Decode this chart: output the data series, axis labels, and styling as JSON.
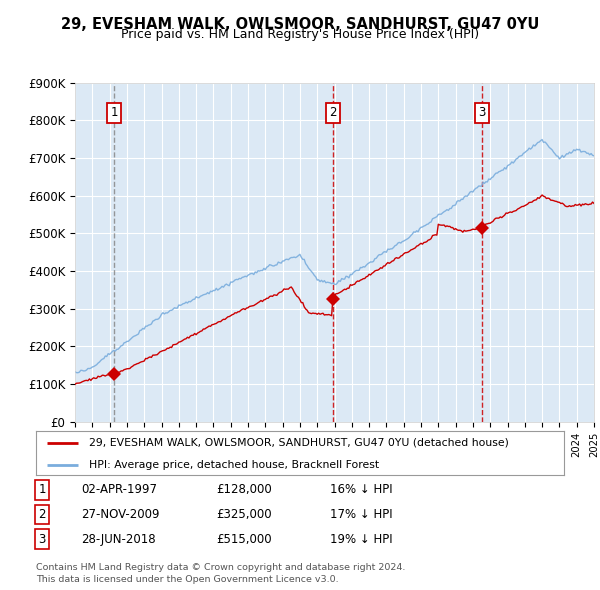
{
  "title": "29, EVESHAM WALK, OWLSMOOR, SANDHURST, GU47 0YU",
  "subtitle": "Price paid vs. HM Land Registry's House Price Index (HPI)",
  "sales": [
    {
      "num": 1,
      "date": "02-APR-1997",
      "price": 128000,
      "year": 1997.25,
      "hpi_note": "16% ↓ HPI"
    },
    {
      "num": 2,
      "date": "27-NOV-2009",
      "price": 325000,
      "year": 2009.9,
      "hpi_note": "17% ↓ HPI"
    },
    {
      "num": 3,
      "date": "28-JUN-2018",
      "price": 515000,
      "year": 2018.5,
      "hpi_note": "19% ↓ HPI"
    }
  ],
  "legend_line1": "29, EVESHAM WALK, OWLSMOOR, SANDHURST, GU47 0YU (detached house)",
  "legend_line2": "HPI: Average price, detached house, Bracknell Forest",
  "footer1": "Contains HM Land Registry data © Crown copyright and database right 2024.",
  "footer2": "This data is licensed under the Open Government Licence v3.0.",
  "bg_color": "#dce9f5",
  "red_color": "#cc0000",
  "blue_color": "#7aaddd",
  "xmin": 1995,
  "xmax": 2025,
  "ymin": 0,
  "ymax": 900000
}
